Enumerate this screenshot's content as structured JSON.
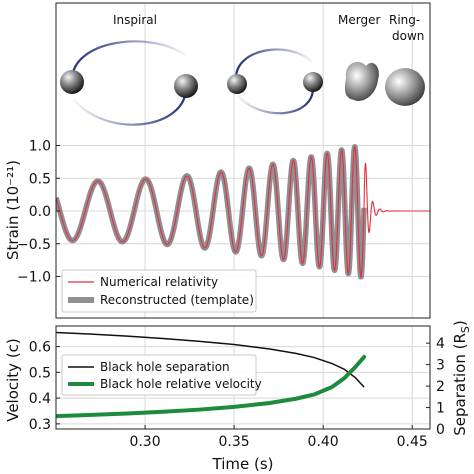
{
  "colors": {
    "numerical": "#e2323f",
    "template": "#8f8f94",
    "separation": "#111111",
    "velocity": "#1e8a3c",
    "grid": "#d8d8d8",
    "bh_blue": "#23307a"
  },
  "stages": {
    "inspiral": "Inspiral",
    "merger": "Merger",
    "ringdown_1": "Ring-",
    "ringdown_2": "down"
  },
  "chart_data": [
    {
      "type": "line",
      "name": "strain",
      "ylabel": "Strain (10⁻²¹)",
      "xlim": [
        0.25,
        0.46
      ],
      "ylim": [
        -1.35,
        1.35
      ],
      "yticks": [
        "1.0",
        "0.5",
        "0.0",
        "−0.5",
        "−1.0"
      ],
      "ytick_values": [
        1.0,
        0.5,
        0.0,
        -0.5,
        -1.0
      ],
      "grid": true,
      "legend_position": "lower-left",
      "series": [
        {
          "name": "Numerical relativity"
        },
        {
          "name": "Reconstructed (template)"
        }
      ],
      "waveform": {
        "t_merge": 0.423,
        "amp_start": 0.45,
        "amp_end": 1.02,
        "freq_start_hz": 35,
        "freq_end_hz": 150,
        "ringdown_tau_s": 0.0025,
        "ringdown_freq_hz": 250,
        "t_end": 0.46
      }
    },
    {
      "type": "line",
      "name": "velocity-separation",
      "xlabel": "Time (s)",
      "ylabel_left": "Velocity (c)",
      "ylabel_right": "Separation (R",
      "ylabel_right_sub": "S",
      "ylabel_right_close": ")",
      "xlim": [
        0.25,
        0.46
      ],
      "xticks": [
        "0.30",
        "0.35",
        "0.40",
        "0.45"
      ],
      "xtick_values": [
        0.3,
        0.35,
        0.4,
        0.45
      ],
      "ylim_left": [
        0.28,
        0.68
      ],
      "yticks_left": [
        "0.6",
        "0.5",
        "0.4",
        "0.3"
      ],
      "ytick_values_left": [
        0.6,
        0.5,
        0.4,
        0.3
      ],
      "ylim_right": [
        0,
        4.8
      ],
      "yticks_right": [
        "4",
        "3",
        "2",
        "1",
        "0"
      ],
      "ytick_values_right": [
        4,
        3,
        2,
        1,
        0
      ],
      "grid": true,
      "legend_position": "center-left",
      "series": [
        {
          "name": "Black hole separation",
          "axis": "right",
          "x": [
            0.25,
            0.27,
            0.29,
            0.31,
            0.33,
            0.35,
            0.37,
            0.385,
            0.395,
            0.405,
            0.412,
            0.418,
            0.423
          ],
          "y": [
            4.5,
            4.42,
            4.33,
            4.22,
            4.09,
            3.94,
            3.73,
            3.52,
            3.33,
            3.05,
            2.78,
            2.4,
            1.95
          ]
        },
        {
          "name": "Black hole relative velocity",
          "axis": "left",
          "x": [
            0.25,
            0.27,
            0.29,
            0.31,
            0.33,
            0.35,
            0.37,
            0.385,
            0.395,
            0.405,
            0.412,
            0.418,
            0.423
          ],
          "y": [
            0.33,
            0.335,
            0.34,
            0.347,
            0.355,
            0.366,
            0.381,
            0.398,
            0.414,
            0.443,
            0.478,
            0.52,
            0.56
          ]
        }
      ]
    }
  ]
}
